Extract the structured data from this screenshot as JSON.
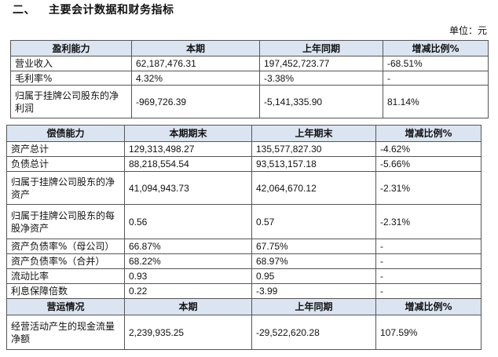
{
  "section": {
    "number": "二、",
    "title": "主要会计数据和财务指标"
  },
  "unit_label": "单位：元",
  "profit": {
    "headers": [
      "盈利能力",
      "本期",
      "上年同期",
      "增减比例%"
    ],
    "rows": [
      [
        "营业收入",
        "62,187,476.31",
        "197,452,723.77",
        "-68.51%"
      ],
      [
        "毛利率%",
        "4.32%",
        "-3.38%",
        "-"
      ],
      [
        "归属于挂牌公司股东的净利润",
        "-969,726.39",
        "-5,141,335.90",
        "81.14%"
      ]
    ]
  },
  "solvency": {
    "headers": [
      "偿债能力",
      "本期期末",
      "上年期末",
      "增减比例%"
    ],
    "rows": [
      [
        "资产总计",
        "129,313,498.27",
        "135,577,827.30",
        "-4.62%"
      ],
      [
        "负债总计",
        "88,218,554.54",
        "93,513,157.18",
        "-5.66%"
      ],
      [
        "归属于挂牌公司股东的净资产",
        "41,094,943.73",
        "42,064,670.12",
        "-2.31%"
      ],
      [
        "归属于挂牌公司股东的每股净资产",
        "0.56",
        "0.57",
        "-2.31%"
      ],
      [
        "资产负债率%（母公司）",
        "66.87%",
        "67.75%",
        "-"
      ],
      [
        "资产负债率%（合并）",
        "68.22%",
        "68.97%",
        "-"
      ],
      [
        "流动比率",
        "0.93",
        "0.95",
        "-"
      ],
      [
        "利息保障倍数",
        "0.22",
        "-3.99",
        "-"
      ]
    ]
  },
  "operation": {
    "headers": [
      "营运情况",
      "本期",
      "上年同期",
      "增减比例%"
    ],
    "rows": [
      [
        "经营活动产生的现金流量净额",
        "2,239,935.25",
        "-29,522,620.28",
        "107.59%"
      ]
    ]
  }
}
